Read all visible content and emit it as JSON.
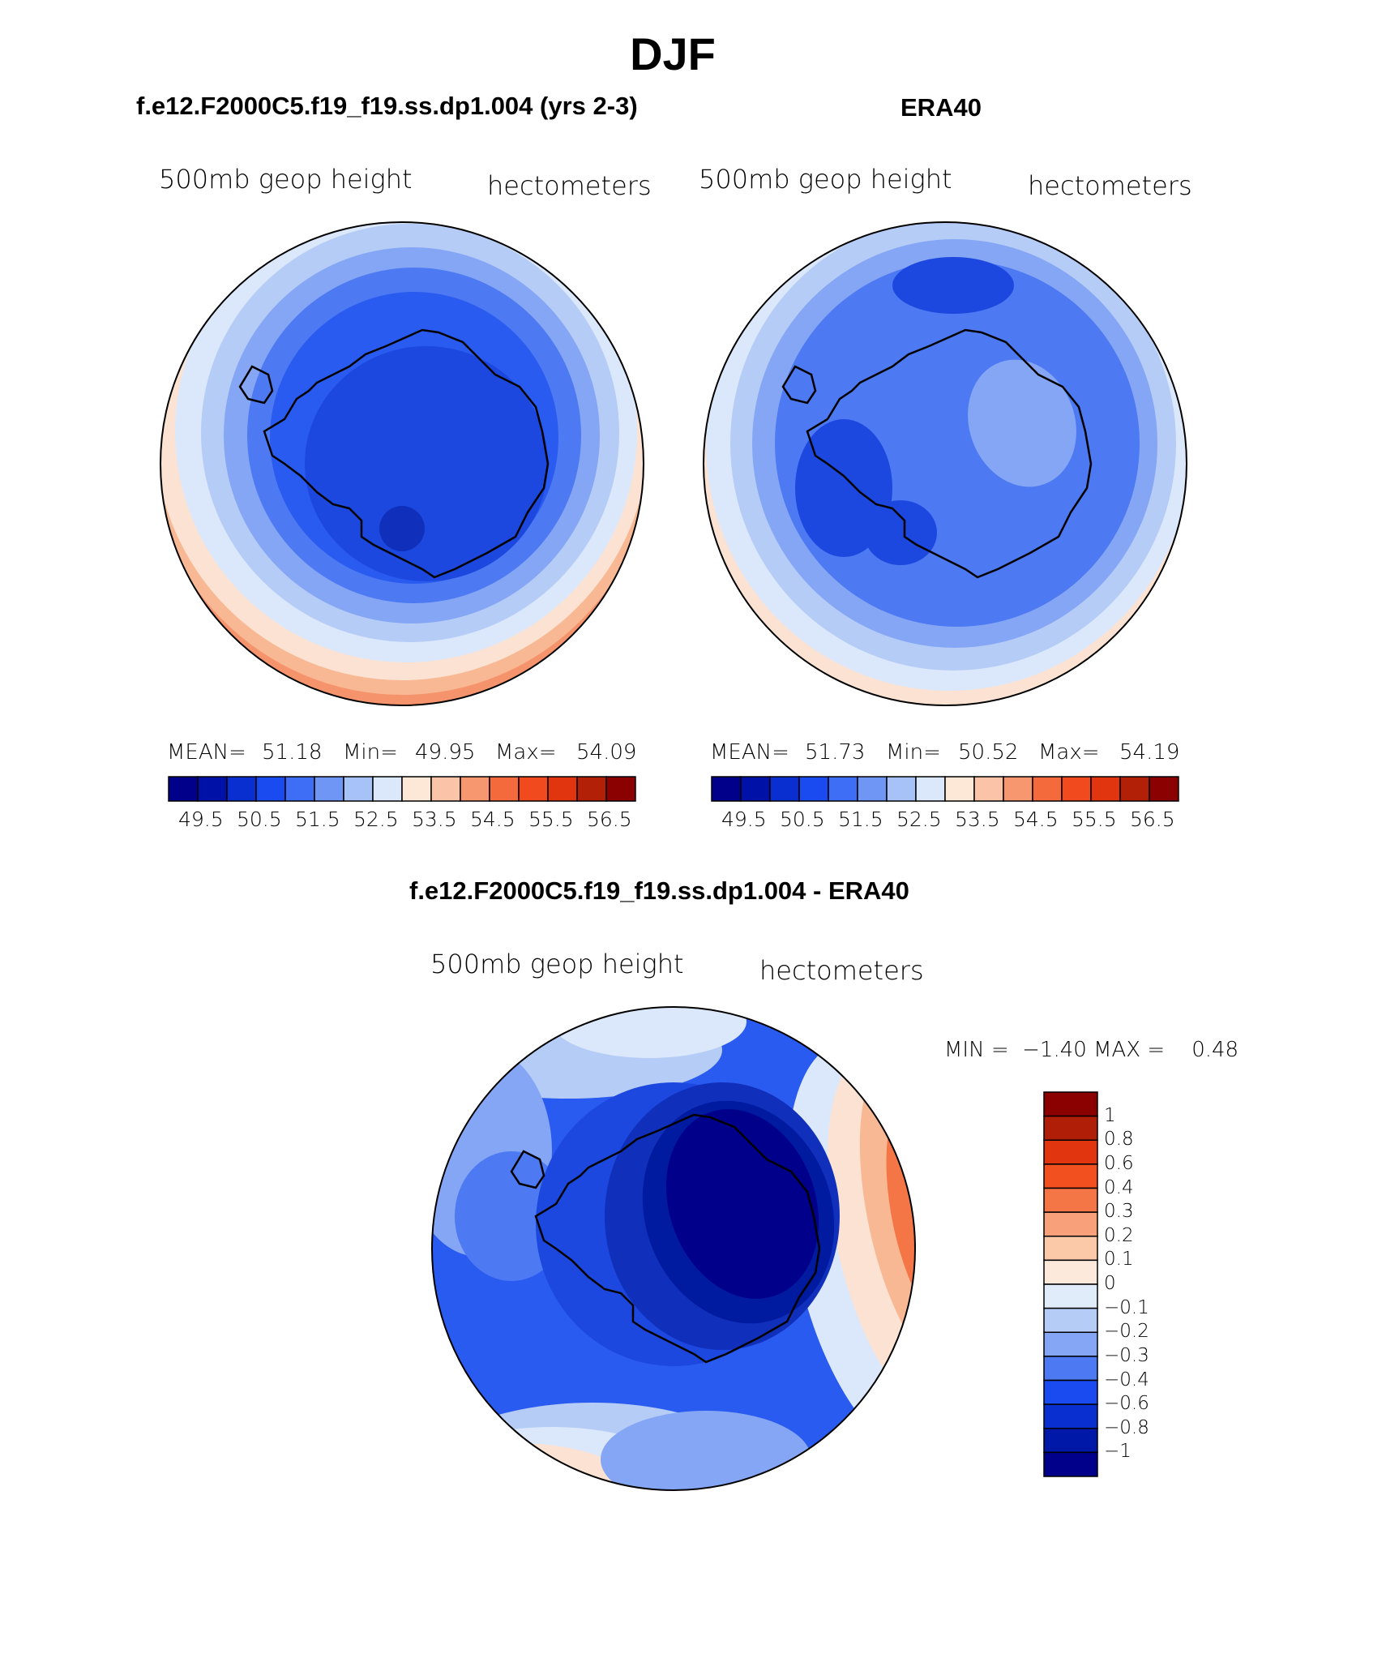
{
  "page": {
    "title": "DJF"
  },
  "panels": [
    {
      "heading": "f.e12.F2000C5.f19_f19.ss.dp1.004 (yrs 2-3)",
      "left_label": "500mb geop height",
      "right_label": "hectometers",
      "stats": {
        "mean_label": "MEAN=",
        "mean": "51.18",
        "min_label": "Min=",
        "min": "49.95",
        "max_label": "Max=",
        "max": "54.09"
      }
    },
    {
      "heading": "ERA40",
      "left_label": "500mb geop height",
      "right_label": "hectometers",
      "stats": {
        "mean_label": "MEAN=",
        "mean": "51.73",
        "min_label": "Min=",
        "min": "50.52",
        "max_label": "Max=",
        "max": "54.19"
      }
    },
    {
      "heading": "f.e12.F2000C5.f19_f19.ss.dp1.004 - ERA40",
      "left_label": "500mb geop height",
      "right_label": "hectometers",
      "minmax_text": "MIN =  −1.40 MAX =    0.48"
    }
  ],
  "horizontal_colorbar": {
    "tick_labels": [
      "49.5",
      "50.5",
      "51.5",
      "52.5",
      "53.5",
      "54.5",
      "55.5",
      "56.5"
    ],
    "colors": [
      "#00008b",
      "#0011a8",
      "#0a2fd0",
      "#1a4bf0",
      "#3d6ef5",
      "#7096f5",
      "#a7c2f7",
      "#dbe8fb",
      "#fde8d8",
      "#fbc4a8",
      "#f7976f",
      "#f46a3c",
      "#f04a1e",
      "#e0350f",
      "#b22008",
      "#8b0000"
    ]
  },
  "vertical_colorbar": {
    "tick_labels": [
      "1",
      "0.8",
      "0.6",
      "0.4",
      "0.3",
      "0.2",
      "0.1",
      "0",
      "−0.1",
      "−0.2",
      "−0.3",
      "−0.4",
      "−0.6",
      "−0.8",
      "−1"
    ],
    "colors_top_to_bottom": [
      "#8b0000",
      "#b01e08",
      "#e0350f",
      "#f2501f",
      "#f47545",
      "#f7a07a",
      "#fbc8a8",
      "#fde9db",
      "#e1ecfb",
      "#b5ccf7",
      "#85a6f5",
      "#4d79f2",
      "#1a4bf0",
      "#0a2fd0",
      "#0018a8",
      "#00008b"
    ]
  },
  "chart_data": [
    {
      "type": "heatmap",
      "title": "f.e12.F2000C5.f19_f19.ss.dp1.004 (yrs 2-3)",
      "variable": "500mb geop height",
      "units": "hectometers",
      "projection": "south polar stereographic",
      "mean": 51.18,
      "min": 49.95,
      "max": 54.09,
      "contour_levels": [
        49.5,
        50,
        50.5,
        51,
        51.5,
        52,
        52.5,
        53,
        53.5,
        54,
        54.5,
        55,
        55.5,
        56,
        56.5
      ]
    },
    {
      "type": "heatmap",
      "title": "ERA40",
      "variable": "500mb geop height",
      "units": "hectometers",
      "projection": "south polar stereographic",
      "mean": 51.73,
      "min": 50.52,
      "max": 54.19,
      "contour_levels": [
        49.5,
        50,
        50.5,
        51,
        51.5,
        52,
        52.5,
        53,
        53.5,
        54,
        54.5,
        55,
        55.5,
        56,
        56.5
      ]
    },
    {
      "type": "heatmap",
      "title": "f.e12.F2000C5.f19_f19.ss.dp1.004 - ERA40",
      "variable": "500mb geop height",
      "units": "hectometers",
      "projection": "south polar stereographic",
      "min": -1.4,
      "max": 0.48,
      "contour_levels": [
        -1,
        -0.8,
        -0.6,
        -0.4,
        -0.3,
        -0.2,
        -0.1,
        0,
        0.1,
        0.2,
        0.3,
        0.4,
        0.6,
        0.8,
        1
      ]
    }
  ]
}
